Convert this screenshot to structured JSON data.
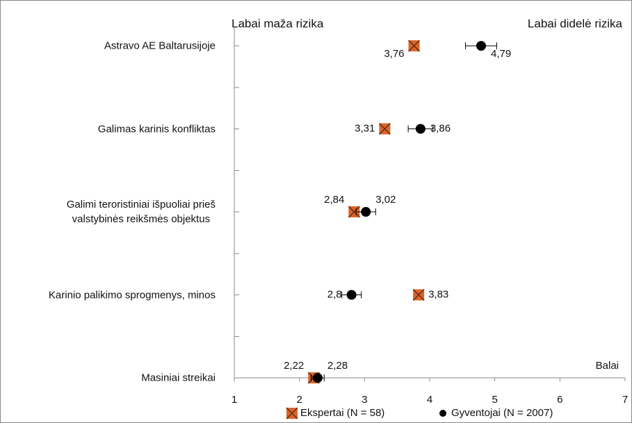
{
  "chart_data": {
    "type": "dot",
    "annotations": [
      "Labai maža rizika",
      "Labai didelė rizika"
    ],
    "xlabel": "Balai",
    "categories": [
      "Astravo AE Baltarusijoje",
      "Galimas karinis konfliktas",
      "Galimi teroristiniai išpuoliai prieš\nvalstybinės reikšmės objektus",
      "Karinio palikimo sprogmenys, minos",
      "Masiniai streikai"
    ],
    "series": [
      {
        "name": "Ekspertai (N = 58)",
        "color": "#d9652b",
        "marker": "square-x",
        "values": [
          3.76,
          3.31,
          2.84,
          3.83,
          2.22
        ],
        "value_labels": [
          "3,76",
          "3,31",
          "2,84",
          "3,83",
          "2,22"
        ]
      },
      {
        "name": "Gyventojai (N = 2007)",
        "color": "#000000",
        "marker": "circle",
        "values": [
          4.79,
          3.86,
          3.02,
          2.8,
          2.28
        ],
        "value_labels": [
          "4,79",
          "3,86",
          "3,02",
          "2,8",
          "2,28"
        ],
        "errors": [
          0.24,
          0.19,
          0.15,
          0.15,
          0.1
        ]
      }
    ],
    "xlim": [
      1,
      7
    ],
    "xticks": [
      1,
      2,
      3,
      4,
      5,
      6,
      7
    ]
  }
}
